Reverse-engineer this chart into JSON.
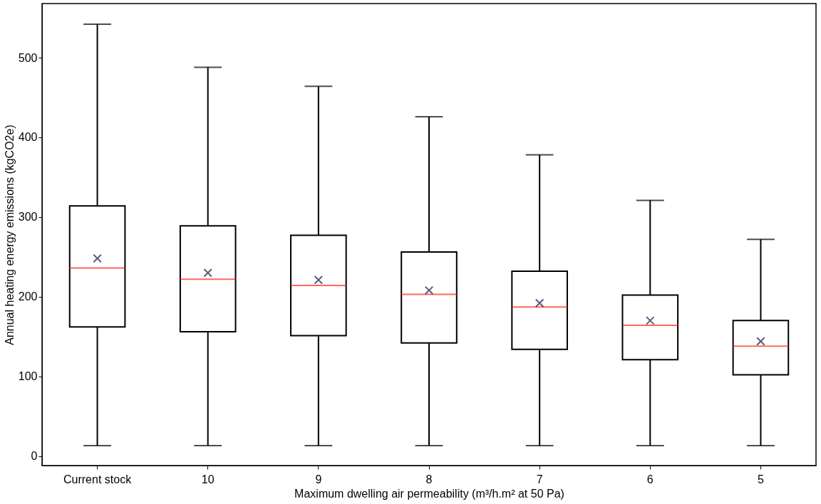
{
  "chart_data": {
    "type": "box",
    "xlabel": "Maximum dwelling air permeability (m³/h.m² at 50 Pa)",
    "ylabel": "Annual heating energy emissions (kgCO2e)",
    "categories": [
      "Current stock",
      "10",
      "9",
      "8",
      "7",
      "6",
      "5"
    ],
    "ylim": [
      -12,
      568
    ],
    "yticks": [
      0,
      100,
      200,
      300,
      400,
      500
    ],
    "grid": false,
    "marker": "cross",
    "series": [
      {
        "color": "#000000",
        "boxes": [
          {
            "low": 13,
            "q1": 162,
            "median": 236,
            "q3": 314,
            "high": 542,
            "mean": 248
          },
          {
            "low": 13,
            "q1": 156,
            "median": 222,
            "q3": 289,
            "high": 488,
            "mean": 230
          },
          {
            "low": 13,
            "q1": 151,
            "median": 214,
            "q3": 277,
            "high": 464,
            "mean": 221
          },
          {
            "low": 13,
            "q1": 142,
            "median": 203,
            "q3": 256,
            "high": 426,
            "mean": 208
          },
          {
            "low": 13,
            "q1": 134,
            "median": 187,
            "q3": 232,
            "high": 378,
            "mean": 192
          },
          {
            "low": 13,
            "q1": 121,
            "median": 164,
            "q3": 202,
            "high": 321,
            "mean": 170
          },
          {
            "low": 13,
            "q1": 102,
            "median": 138,
            "q3": 170,
            "high": 272,
            "mean": 144
          }
        ]
      }
    ]
  }
}
